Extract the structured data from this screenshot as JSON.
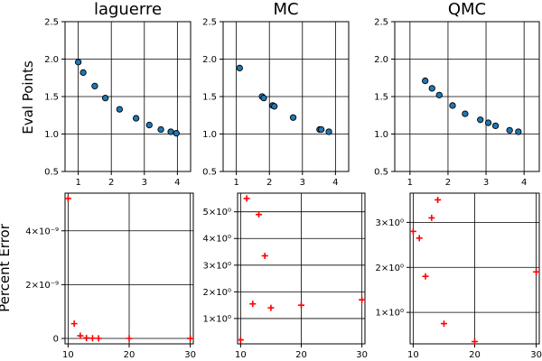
{
  "figure": {
    "row_labels": [
      "Eval Points",
      "Percent Error"
    ]
  },
  "chart_data": [
    {
      "type": "scatter",
      "title": "laguerre",
      "ylabel": "Eval Points",
      "xlabel": "",
      "grid": true,
      "xlim": [
        0.6,
        4.4
      ],
      "ylim": [
        0.5,
        2.5
      ],
      "xticks": [
        1,
        2,
        3,
        4
      ],
      "xtick_labels": [
        "1",
        "2",
        "3",
        "4"
      ],
      "yticks": [
        0.5,
        1.0,
        1.5,
        2.0,
        2.5
      ],
      "ytick_labels": [
        "0.5",
        "1.0",
        "1.5",
        "2.0",
        "2.5"
      ],
      "marker": "circle",
      "color": "#1f77b4",
      "series": [
        {
          "x": [
            1.0,
            1.15,
            1.5,
            1.82,
            2.25,
            2.75,
            3.15,
            3.5,
            3.8,
            3.97
          ],
          "y": [
            1.96,
            1.82,
            1.64,
            1.48,
            1.33,
            1.21,
            1.12,
            1.06,
            1.03,
            1.01
          ]
        }
      ]
    },
    {
      "type": "scatter",
      "title": "MC",
      "xlabel": "",
      "ylabel": "",
      "grid": true,
      "xlim": [
        0.6,
        4.4
      ],
      "ylim": [
        0.5,
        2.5
      ],
      "xticks": [
        1,
        2,
        3,
        4
      ],
      "xtick_labels": [
        "1",
        "2",
        "3",
        "4"
      ],
      "yticks": [
        0.5,
        1.0,
        1.5,
        2.0,
        2.5
      ],
      "ytick_labels": [
        "0.5",
        "1.0",
        "1.5",
        "2.0",
        "2.5"
      ],
      "marker": "circle",
      "color": "#1f77b4",
      "series": [
        {
          "x": [
            1.1,
            1.78,
            1.83,
            2.1,
            2.15,
            2.72,
            3.52,
            3.57,
            3.8
          ],
          "y": [
            1.88,
            1.5,
            1.48,
            1.38,
            1.37,
            1.22,
            1.06,
            1.06,
            1.03
          ]
        }
      ]
    },
    {
      "type": "scatter",
      "title": "QMC",
      "xlabel": "",
      "ylabel": "",
      "grid": true,
      "xlim": [
        0.6,
        4.4
      ],
      "ylim": [
        0.5,
        2.5
      ],
      "xticks": [
        1,
        2,
        3,
        4
      ],
      "xtick_labels": [
        "1",
        "2",
        "3",
        "4"
      ],
      "yticks": [
        0.5,
        1.0,
        1.5,
        2.0,
        2.5
      ],
      "ytick_labels": [
        "0.5",
        "1.0",
        "1.5",
        "2.0",
        "2.5"
      ],
      "marker": "circle",
      "color": "#1f77b4",
      "series": [
        {
          "x": [
            1.4,
            1.58,
            1.77,
            2.12,
            2.45,
            2.85,
            3.06,
            3.25,
            3.62,
            3.85
          ],
          "y": [
            1.71,
            1.61,
            1.52,
            1.38,
            1.27,
            1.19,
            1.15,
            1.11,
            1.05,
            1.03
          ]
        }
      ]
    },
    {
      "type": "scatter",
      "title": "",
      "ylabel": "Percent Error",
      "xlabel": "",
      "grid": true,
      "xlim": [
        9.5,
        30.5
      ],
      "ylim": [
        -2e-10,
        5.4e-09
      ],
      "xticks": [
        10,
        20,
        30
      ],
      "xtick_labels": [
        "10",
        "20",
        "30"
      ],
      "yticks": [
        0,
        2e-09,
        4e-09
      ],
      "ytick_labels": [
        "0",
        "2×10⁻⁹",
        "4×10⁻⁹"
      ],
      "marker": "plus",
      "color": "#ff0000",
      "series": [
        {
          "x": [
            10,
            11,
            12,
            13,
            14,
            15,
            20,
            30
          ],
          "y": [
            5.2e-09,
            5.5e-10,
            1e-10,
            2e-11,
            1e-11,
            5e-12,
            1e-12,
            1e-13
          ]
        }
      ]
    },
    {
      "type": "scatter",
      "title": "",
      "xlabel": "",
      "ylabel": "",
      "grid": true,
      "xlim": [
        9.5,
        30.5
      ],
      "ylim": [
        0.05,
        5.7
      ],
      "xticks": [
        10,
        20,
        30
      ],
      "xtick_labels": [
        "10",
        "20",
        "30"
      ],
      "yticks": [
        1,
        2,
        3,
        4,
        5
      ],
      "ytick_labels": [
        "1×10⁰",
        "2×10⁰",
        "3×10⁰",
        "4×10⁰",
        "5×10⁰"
      ],
      "marker": "plus",
      "color": "#ff0000",
      "series": [
        {
          "x": [
            10,
            11,
            12,
            13,
            14,
            15,
            20,
            30
          ],
          "y": [
            0.2,
            5.5,
            1.55,
            4.9,
            3.35,
            1.4,
            1.5,
            1.7
          ]
        }
      ]
    },
    {
      "type": "scatter",
      "title": "",
      "xlabel": "",
      "ylabel": "",
      "grid": true,
      "xlim": [
        9.5,
        30.5
      ],
      "ylim": [
        0.3,
        3.65
      ],
      "xticks": [
        10,
        20,
        30
      ],
      "xtick_labels": [
        "10",
        "20",
        "30"
      ],
      "yticks": [
        1,
        2,
        3
      ],
      "ytick_labels": [
        "1×10⁰",
        "2×10⁰",
        "3×10⁰"
      ],
      "marker": "plus",
      "color": "#ff0000",
      "series": [
        {
          "x": [
            10,
            11,
            12,
            13,
            14,
            15,
            20,
            30
          ],
          "y": [
            2.8,
            2.65,
            1.8,
            3.1,
            3.5,
            0.75,
            0.35,
            1.9
          ]
        }
      ]
    }
  ]
}
